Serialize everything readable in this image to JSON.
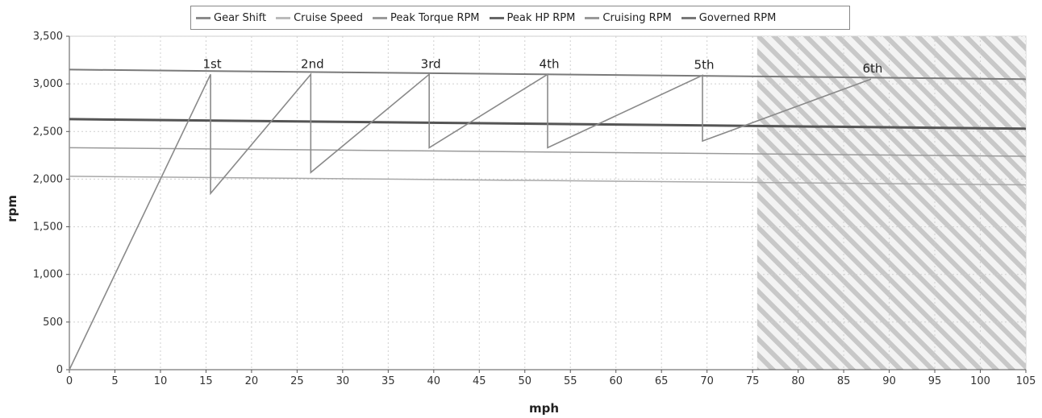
{
  "chart_data": {
    "type": "line",
    "title": "",
    "xlabel": "mph",
    "ylabel": "rpm",
    "xlim": [
      0,
      105
    ],
    "ylim": [
      0,
      3500
    ],
    "x_ticks": [
      0,
      5,
      10,
      15,
      20,
      25,
      30,
      35,
      40,
      45,
      50,
      55,
      60,
      65,
      70,
      75,
      80,
      85,
      90,
      95,
      100,
      105
    ],
    "y_ticks": [
      0,
      500,
      1000,
      1500,
      2000,
      2500,
      3000,
      3500
    ],
    "y_tick_labels": [
      "0",
      "500",
      "1,000",
      "1,500",
      "2,000",
      "2,500",
      "3,000",
      "3,500"
    ],
    "grid": true,
    "legend_position": "top-center",
    "legend": [
      {
        "name": "Gear Shift",
        "color": "#8a8a8a"
      },
      {
        "name": "Cruise Speed",
        "color": "#bbbbbb"
      },
      {
        "name": "Peak Torque RPM",
        "color": "#9a9a9a"
      },
      {
        "name": "Peak HP RPM",
        "color": "#666666"
      },
      {
        "name": "Cruising RPM",
        "color": "#999999"
      },
      {
        "name": "Governed RPM",
        "color": "#777777"
      }
    ],
    "gear_shift_points": [
      [
        0,
        0
      ],
      [
        15.5,
        3100
      ],
      [
        15.5,
        1850
      ],
      [
        26.5,
        3100
      ],
      [
        26.5,
        2070
      ],
      [
        39.5,
        3100
      ],
      [
        39.5,
        2330
      ],
      [
        52.5,
        3100
      ],
      [
        52.5,
        2330
      ],
      [
        69.5,
        3090
      ],
      [
        69.5,
        2400
      ],
      [
        88,
        3050
      ]
    ],
    "gear_labels": [
      {
        "label": "1st",
        "x": 15.5,
        "y": 3100
      },
      {
        "label": "2nd",
        "x": 26.5,
        "y": 3100
      },
      {
        "label": "3rd",
        "x": 39.5,
        "y": 3100
      },
      {
        "label": "4th",
        "x": 52.5,
        "y": 3100
      },
      {
        "label": "5th",
        "x": 69.5,
        "y": 3090
      },
      {
        "label": "6th",
        "x": 88,
        "y": 3050
      }
    ],
    "reference_lines": [
      {
        "name": "Governed RPM",
        "y_start": 3150,
        "y_end": 3050
      },
      {
        "name": "Peak HP RPM",
        "y_start": 2630,
        "y_end": 2530
      },
      {
        "name": "Cruising RPM",
        "y_start": 2330,
        "y_end": 2240
      },
      {
        "name": "Peak Torque RPM",
        "y_start": 2030,
        "y_end": 1940
      }
    ],
    "hatched_region_x": [
      75.5,
      105
    ],
    "colors": {
      "line": "#8a8a8a",
      "grid": "#cfcfcf",
      "hatch": "#c8c8c8",
      "axis": "#555555"
    }
  }
}
